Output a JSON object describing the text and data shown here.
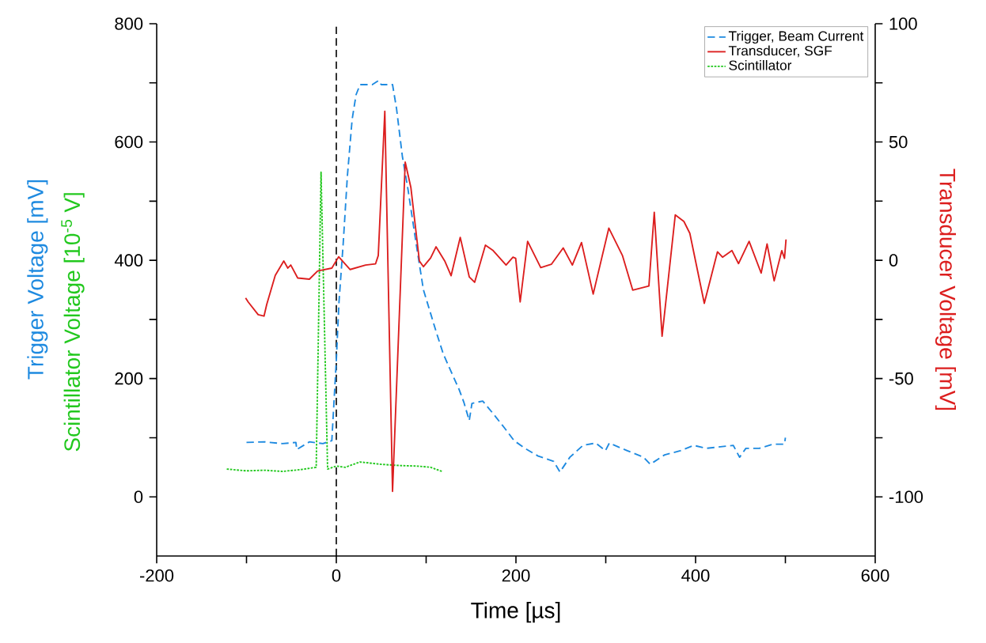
{
  "chart_data": {
    "type": "line",
    "xlabel": "Time [µs]",
    "ylabel": "Trigger Voltage [mV]",
    "y2label": "Transducer Voltage [mV]",
    "annotations": [
      "Scintillator Voltage [10$^{-5}$ V]"
    ],
    "xlim": [
      -200,
      600
    ],
    "ylim": [
      -100,
      800
    ],
    "y2lim": [
      -125,
      100
    ],
    "xticks": [
      -200,
      {
        "value": -100,
        "label": null
      },
      0,
      {
        "value": 100,
        "label": null
      },
      200,
      {
        "value": 300,
        "label": null
      },
      400,
      {
        "value": 500,
        "label": null
      },
      600
    ],
    "yticks": [
      0,
      {
        "value": 100,
        "label": null
      },
      200,
      {
        "value": 300,
        "label": null
      },
      400,
      {
        "value": 500,
        "label": null
      },
      600,
      {
        "value": 700,
        "label": null
      },
      800
    ],
    "y2ticks": [
      -100,
      {
        "value": -75,
        "label": null
      },
      -50,
      {
        "value": -25,
        "label": null
      },
      0,
      {
        "value": 25,
        "label": null
      },
      50,
      {
        "value": 75,
        "label": null
      },
      100
    ],
    "legend": "top right",
    "ref_lines": [
      {
        "axis": "x",
        "value": 0,
        "color": "#000000",
        "line_style": "dashed"
      }
    ],
    "series": [
      {
        "name": "Trigger, Beam Current",
        "color": "#1e8ae0",
        "line_style": "dashed",
        "x": [
          -100,
          -80,
          -60,
          -45,
          -44,
          -30,
          -15,
          -5,
          0,
          3,
          7.6,
          12.3,
          17.6,
          22,
          26.4,
          40,
          47,
          50,
          62.6,
          67,
          73.6,
          80,
          89,
          97,
          111,
          119,
          128,
          136.6,
          142,
          148,
          151,
          163,
          175,
          186.5,
          198,
          210,
          224.7,
          242,
          249,
          260,
          274.6,
          289,
          299.6,
          304,
          324,
          342,
          349.5,
          365.6,
          383,
          398,
          412,
          442,
          449,
          456,
          471,
          486,
          499,
          500
        ],
        "values": [
          92,
          93,
          90,
          92,
          80,
          93,
          90,
          95,
          231,
          330,
          427,
          542,
          638,
          680,
          697,
          697,
          704,
          697,
          697,
          657,
          575,
          518,
          427,
          350,
          280,
          242,
          211,
          182,
          160,
          129,
          158,
          162,
          140,
          118,
          95,
          82,
          69,
          60,
          42,
          67,
          87,
          91,
          78,
          91,
          78,
          67,
          55,
          71,
          78,
          87,
          82,
          87,
          67,
          82,
          82,
          89,
          89,
          100
        ]
      },
      {
        "name": "Transducer, SGF",
        "color": "#dc1e1e",
        "line_style": "solid",
        "axis": "y2",
        "x": [
          -101,
          -98,
          -87,
          -80.5,
          -77.5,
          -68,
          -58.5,
          -54,
          -50.7,
          -43,
          -30,
          -20.8,
          -5,
          2.6,
          15.4,
          32.6,
          43.7,
          46.7,
          54,
          62.6,
          76.7,
          83,
          92.5,
          97,
          105,
          111,
          120.7,
          127.8,
          138,
          148,
          154,
          166,
          174.6,
          189,
          196.7,
          199.7,
          204.7,
          213,
          227.6,
          239.4,
          252.6,
          262.8,
          273,
          286,
          303.4,
          318.7,
          330,
          348,
          354,
          362.7,
          377.4,
          387,
          393.6,
          409.7,
          424.4,
          430,
          440.5,
          447.8,
          459.6,
          473,
          479.6,
          487.5,
          496,
          499,
          500.7
        ],
        "values": [
          -15.9,
          -17.7,
          -23,
          -23.6,
          -18.7,
          -6.4,
          -0.3,
          -3.3,
          -2,
          -7.5,
          -8,
          -4.5,
          -3.3,
          1.5,
          -3.9,
          -2,
          -1.5,
          2,
          63,
          -97.7,
          41.5,
          30.8,
          -0.3,
          -2.7,
          1,
          5.7,
          -0.3,
          -6.5,
          9.7,
          -7,
          -9.3,
          6.4,
          4.1,
          -2,
          1.3,
          0.8,
          -17.6,
          8,
          -3.1,
          -1.7,
          5.2,
          -2,
          7.5,
          -14.3,
          13.6,
          1.9,
          -12.6,
          -10.9,
          20.3,
          -32.1,
          19.2,
          16.4,
          11.4,
          -18.2,
          3.6,
          1.3,
          4.1,
          -1.4,
          8,
          -5.4,
          6.9,
          -8.7,
          4.1,
          0.8,
          8.8
        ]
      },
      {
        "name": "Scintillator",
        "color": "#22c81e",
        "line_style": "dotted",
        "x": [
          -122,
          -100,
          -80,
          -60,
          -40,
          -22.4,
          -17,
          -9.7,
          0,
          10,
          26.4,
          50,
          70,
          90,
          105,
          117.7
        ],
        "values": [
          47,
          44,
          45,
          43,
          46,
          50,
          549,
          47,
          52,
          50,
          59,
          55,
          53,
          52,
          50,
          43
        ]
      }
    ]
  }
}
